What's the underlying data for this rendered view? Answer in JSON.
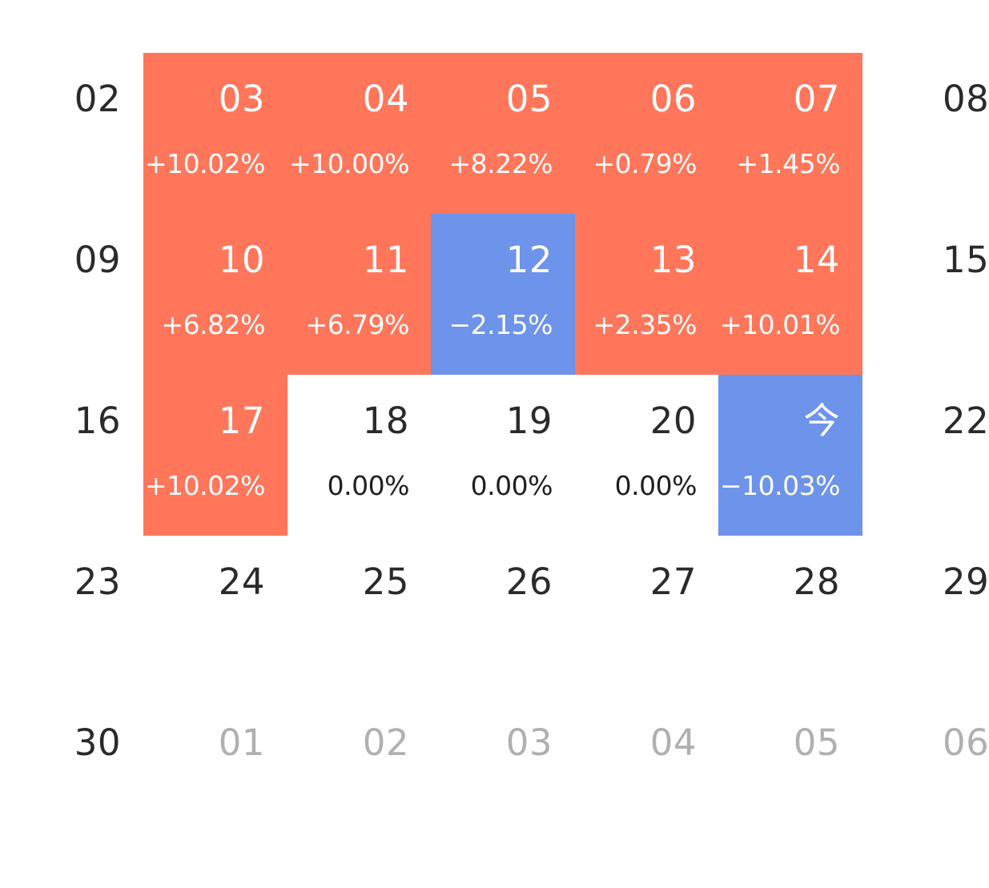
{
  "colors": {
    "up": "#ff765a",
    "down": "#6d93ea",
    "text": "#2a2a2a",
    "muted": "#b0b0b0"
  },
  "weeks": [
    {
      "days": [
        {
          "label": "02",
          "pct": "",
          "state": "plain"
        },
        {
          "label": "03",
          "pct": "+10.02%",
          "state": "up"
        },
        {
          "label": "04",
          "pct": "+10.00%",
          "state": "up"
        },
        {
          "label": "05",
          "pct": "+8.22%",
          "state": "up"
        },
        {
          "label": "06",
          "pct": "+0.79%",
          "state": "up"
        },
        {
          "label": "07",
          "pct": "+1.45%",
          "state": "up"
        },
        {
          "label": "08",
          "pct": "",
          "state": "plain"
        }
      ]
    },
    {
      "days": [
        {
          "label": "09",
          "pct": "",
          "state": "plain"
        },
        {
          "label": "10",
          "pct": "+6.82%",
          "state": "up"
        },
        {
          "label": "11",
          "pct": "+6.79%",
          "state": "up"
        },
        {
          "label": "12",
          "pct": "−2.15%",
          "state": "down"
        },
        {
          "label": "13",
          "pct": "+2.35%",
          "state": "up"
        },
        {
          "label": "14",
          "pct": "+10.01%",
          "state": "up"
        },
        {
          "label": "15",
          "pct": "",
          "state": "plain"
        }
      ]
    },
    {
      "days": [
        {
          "label": "16",
          "pct": "",
          "state": "plain"
        },
        {
          "label": "17",
          "pct": "+10.02%",
          "state": "up"
        },
        {
          "label": "18",
          "pct": "0.00%",
          "state": "plain"
        },
        {
          "label": "19",
          "pct": "0.00%",
          "state": "plain"
        },
        {
          "label": "20",
          "pct": "0.00%",
          "state": "plain"
        },
        {
          "label": "今",
          "pct": "−10.03%",
          "state": "down"
        },
        {
          "label": "22",
          "pct": "",
          "state": "plain"
        }
      ]
    },
    {
      "days": [
        {
          "label": "23",
          "pct": "",
          "state": "plain"
        },
        {
          "label": "24",
          "pct": "",
          "state": "plain"
        },
        {
          "label": "25",
          "pct": "",
          "state": "plain"
        },
        {
          "label": "26",
          "pct": "",
          "state": "plain"
        },
        {
          "label": "27",
          "pct": "",
          "state": "plain"
        },
        {
          "label": "28",
          "pct": "",
          "state": "plain"
        },
        {
          "label": "29",
          "pct": "",
          "state": "plain"
        }
      ]
    },
    {
      "days": [
        {
          "label": "30",
          "pct": "",
          "state": "plain"
        },
        {
          "label": "01",
          "pct": "",
          "state": "muted"
        },
        {
          "label": "02",
          "pct": "",
          "state": "muted"
        },
        {
          "label": "03",
          "pct": "",
          "state": "muted"
        },
        {
          "label": "04",
          "pct": "",
          "state": "muted"
        },
        {
          "label": "05",
          "pct": "",
          "state": "muted"
        },
        {
          "label": "06",
          "pct": "",
          "state": "muted"
        }
      ]
    }
  ]
}
